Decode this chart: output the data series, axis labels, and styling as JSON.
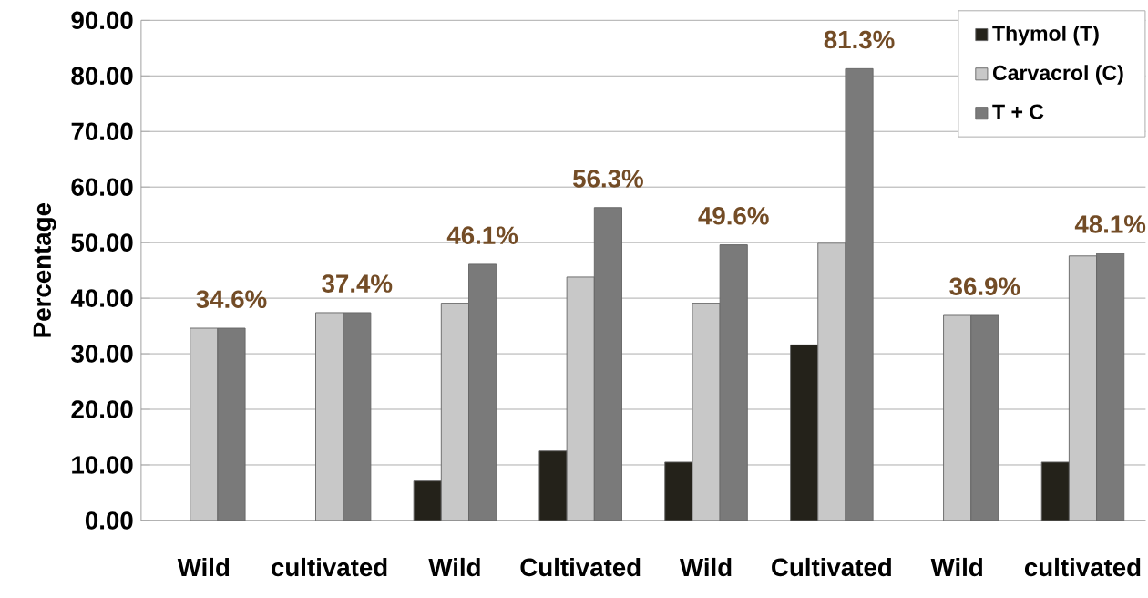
{
  "chart_data": {
    "type": "bar",
    "ylabel": "Percentage",
    "categories": [
      "Wild",
      "cultivated",
      "Wild",
      "Cultivated",
      "Wild",
      "Cultivated",
      "Wild",
      "cultivated"
    ],
    "series": [
      {
        "name": "Thymol (T)",
        "color": "#24221a",
        "values": [
          null,
          null,
          7.1,
          12.5,
          10.5,
          31.6,
          null,
          10.5
        ]
      },
      {
        "name": "Carvacrol (C)",
        "color": "#c8c8c8",
        "values": [
          34.6,
          37.4,
          39.1,
          43.8,
          39.1,
          49.9,
          36.9,
          47.6
        ]
      },
      {
        "name": "T + C",
        "color": "#7a7a7a",
        "values": [
          34.6,
          37.4,
          46.1,
          56.3,
          49.6,
          81.3,
          36.9,
          48.1
        ],
        "value_labels": [
          "34.6%",
          "37.4%",
          "46.1%",
          "56.3%",
          "49.6%",
          "81.3%",
          "36.9%",
          "48.1%"
        ]
      }
    ],
    "ylim": [
      0,
      90
    ],
    "yticks": [
      {
        "value": 0,
        "label": "0.00"
      },
      {
        "value": 10,
        "label": "10.00"
      },
      {
        "value": 20,
        "label": "20.00"
      },
      {
        "value": 30,
        "label": "30.00"
      },
      {
        "value": 40,
        "label": "40.00"
      },
      {
        "value": 50,
        "label": "50.00"
      },
      {
        "value": 60,
        "label": "60.00"
      },
      {
        "value": 70,
        "label": "70.00"
      },
      {
        "value": 80,
        "label": "80.00"
      },
      {
        "value": 90,
        "label": "90.00"
      }
    ],
    "grid": "y",
    "legend": "top right"
  }
}
